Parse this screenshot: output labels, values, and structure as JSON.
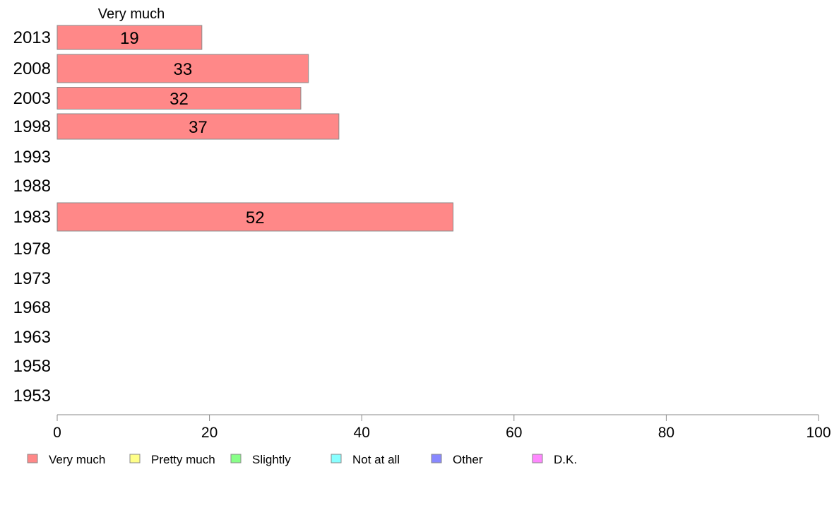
{
  "chart_data": {
    "type": "bar",
    "orientation": "horizontal",
    "categories": [
      "2013",
      "2008",
      "2003",
      "1998",
      "1993",
      "1988",
      "1983",
      "1978",
      "1973",
      "1968",
      "1963",
      "1958",
      "1953"
    ],
    "series": [
      {
        "name": "Very much",
        "color": "#ff8888",
        "values": [
          19,
          33,
          32,
          37,
          null,
          null,
          52,
          null,
          null,
          null,
          null,
          null,
          null
        ]
      },
      {
        "name": "Pretty much",
        "color": "#ffff88",
        "values": [
          null,
          null,
          null,
          null,
          null,
          null,
          null,
          null,
          null,
          null,
          null,
          null,
          null
        ]
      },
      {
        "name": "Slightly",
        "color": "#88ff88",
        "values": [
          null,
          null,
          null,
          null,
          null,
          null,
          null,
          null,
          null,
          null,
          null,
          null,
          null
        ]
      },
      {
        "name": "Not at all",
        "color": "#88ffff",
        "values": [
          null,
          null,
          null,
          null,
          null,
          null,
          null,
          null,
          null,
          null,
          null,
          null,
          null
        ]
      },
      {
        "name": "Other",
        "color": "#8888ff",
        "values": [
          null,
          null,
          null,
          null,
          null,
          null,
          null,
          null,
          null,
          null,
          null,
          null,
          null
        ]
      },
      {
        "name": "D.K.",
        "color": "#ff88ff",
        "values": [
          null,
          null,
          null,
          null,
          null,
          null,
          null,
          null,
          null,
          null,
          null,
          null,
          null
        ]
      }
    ],
    "series_header": "Very much",
    "xlim": [
      0,
      100
    ],
    "xticks": [
      0,
      20,
      40,
      60,
      80,
      100
    ],
    "grid": false,
    "legend_position": "bottom"
  }
}
